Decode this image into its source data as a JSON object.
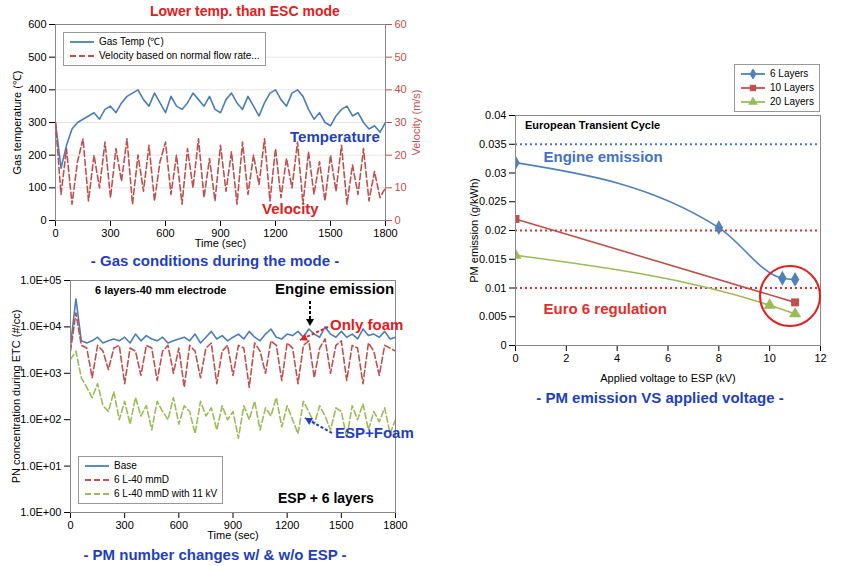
{
  "chart_data": [
    {
      "type": "line",
      "x_label": "Time (sec)",
      "y_label": "Gas temperature (℃)",
      "y2_label": "Velocity (m/s)",
      "caption": "- Gas conditions during the mode -",
      "annotations": [
        {
          "text": "Lower temp. than ESC mode",
          "color": "#e02020"
        },
        {
          "text": "Temperature",
          "color": "#1f3fbf"
        },
        {
          "text": "Velocity",
          "color": "#e02020"
        }
      ],
      "xlim": [
        0,
        1800
      ],
      "xticks": [
        0,
        300,
        600,
        900,
        1200,
        1500,
        1800
      ],
      "ylim": [
        0,
        600
      ],
      "yticks": [
        0,
        100,
        200,
        300,
        400,
        500,
        600
      ],
      "y2lim": [
        0,
        60
      ],
      "y2ticks": [
        0,
        10,
        20,
        30,
        40,
        50,
        60
      ],
      "grid": true,
      "legend": "upper left",
      "x": [
        0,
        30,
        60,
        90,
        120,
        150,
        180,
        210,
        240,
        270,
        300,
        330,
        360,
        390,
        420,
        450,
        480,
        510,
        540,
        570,
        600,
        630,
        660,
        690,
        720,
        750,
        780,
        810,
        840,
        870,
        900,
        930,
        960,
        990,
        1020,
        1050,
        1080,
        1110,
        1140,
        1170,
        1200,
        1230,
        1260,
        1290,
        1320,
        1350,
        1380,
        1410,
        1440,
        1470,
        1500,
        1530,
        1560,
        1590,
        1620,
        1650,
        1680,
        1710,
        1740,
        1770,
        1800
      ],
      "series": [
        {
          "name": "Gas Temp (℃)",
          "color": "#4a7ebb",
          "line_style": "solid",
          "values": [
            300,
            160,
            230,
            280,
            300,
            310,
            320,
            330,
            310,
            340,
            350,
            330,
            360,
            380,
            390,
            400,
            370,
            350,
            390,
            360,
            330,
            380,
            350,
            340,
            360,
            390,
            370,
            350,
            380,
            340,
            330,
            370,
            390,
            360,
            340,
            380,
            350,
            320,
            360,
            390,
            400,
            370,
            350,
            390,
            400,
            380,
            340,
            310,
            330,
            300,
            290,
            320,
            340,
            350,
            320,
            330,
            300,
            280,
            290,
            270,
            300
          ]
        },
        {
          "name": "Velocity based on normal flow rate...",
          "color": "#c0504d",
          "line_style": "dashed",
          "axis": "y2",
          "values": [
            30,
            8,
            22,
            5,
            18,
            25,
            6,
            20,
            10,
            24,
            7,
            22,
            12,
            25,
            5,
            20,
            9,
            23,
            6,
            18,
            24,
            8,
            20,
            5,
            22,
            10,
            25,
            7,
            19,
            6,
            23,
            9,
            21,
            5,
            24,
            8,
            20,
            11,
            25,
            6,
            22,
            7,
            19,
            10,
            24,
            5,
            21,
            8,
            18,
            6,
            20,
            9,
            23,
            5,
            17,
            8,
            22,
            6,
            15,
            7,
            10
          ]
        }
      ]
    },
    {
      "type": "line",
      "title": "6 layers-40 mm electrode",
      "x_label": "Time (sec)",
      "y_label": "PN concentration during ETC (#/cc)",
      "caption": "- PM number changes w/ & w/o ESP -",
      "annotations": [
        {
          "text": "Engine emission",
          "color": "#000000"
        },
        {
          "text": "Only foam",
          "color": "#e02020"
        },
        {
          "text": "ESP+Foam",
          "color": "#1f3fbf"
        },
        {
          "text": "ESP + 6 layers",
          "color": "#000000"
        }
      ],
      "log": "y",
      "legend": "lower left",
      "xlim": [
        0,
        1800
      ],
      "xticks": [
        0,
        300,
        600,
        900,
        1200,
        1500,
        1800
      ],
      "ylim": [
        1,
        100000
      ],
      "yticks": [
        {
          "value": 1,
          "label": "1.0E+00"
        },
        {
          "value": 10,
          "label": "1.0E+01"
        },
        {
          "value": 100,
          "label": "1.0E+02"
        },
        {
          "value": 1000,
          "label": "1.0E+03"
        },
        {
          "value": 10000,
          "label": "1.0E+04"
        },
        {
          "value": 100000,
          "label": "1.0E+05"
        }
      ],
      "x": [
        0,
        30,
        60,
        90,
        120,
        150,
        180,
        210,
        240,
        270,
        300,
        330,
        360,
        390,
        420,
        450,
        480,
        510,
        540,
        570,
        600,
        630,
        660,
        690,
        720,
        750,
        780,
        810,
        840,
        870,
        900,
        930,
        960,
        990,
        1020,
        1050,
        1080,
        1110,
        1140,
        1170,
        1200,
        1230,
        1260,
        1290,
        1320,
        1350,
        1380,
        1410,
        1440,
        1470,
        1500,
        1530,
        1560,
        1590,
        1620,
        1650,
        1680,
        1710,
        1740,
        1770,
        1800
      ],
      "series": [
        {
          "name": "Base",
          "color": "#4a7ebb",
          "line_style": "solid",
          "values": [
            4000,
            40000,
            5000,
            4500,
            5000,
            6000,
            4500,
            5000,
            5500,
            5000,
            6000,
            4500,
            7000,
            5000,
            6500,
            5500,
            5000,
            6000,
            4500,
            5000,
            5500,
            6000,
            5000,
            7000,
            4500,
            6000,
            8000,
            5500,
            6500,
            5000,
            6000,
            7000,
            5500,
            8000,
            6000,
            5000,
            7000,
            9000,
            6000,
            5500,
            7000,
            6500,
            8000,
            6000,
            9000,
            7000,
            6000,
            10000,
            7000,
            6000,
            8000,
            6000,
            7000,
            5500,
            9000,
            6500,
            7000,
            6000,
            8000,
            5500,
            6000
          ]
        },
        {
          "name": "6 L-40 mmD",
          "color": "#c0504d",
          "line_style": "dashed",
          "values": [
            3000,
            20000,
            4000,
            3500,
            800,
            4000,
            3000,
            1200,
            3500,
            4000,
            600,
            3500,
            3000,
            900,
            4000,
            3500,
            700,
            3000,
            4000,
            1000,
            3500,
            500,
            4000,
            3000,
            800,
            3500,
            4500,
            600,
            3000,
            4000,
            900,
            4000,
            3500,
            500,
            4500,
            3000,
            1000,
            5000,
            4000,
            700,
            4500,
            3500,
            600,
            4000,
            5000,
            800,
            3500,
            5500,
            1000,
            4000,
            5000,
            700,
            4000,
            3500,
            600,
            4500,
            3000,
            900,
            4000,
            3500,
            3000
          ]
        },
        {
          "name": "6 L-40 mmD with 11 kV",
          "color": "#9bbb59",
          "line_style": "dashed",
          "values": [
            2000,
            3000,
            800,
            500,
            300,
            600,
            200,
            150,
            400,
            100,
            250,
            80,
            300,
            120,
            200,
            60,
            250,
            150,
            100,
            300,
            80,
            200,
            150,
            50,
            250,
            120,
            180,
            60,
            200,
            100,
            150,
            40,
            200,
            100,
            250,
            60,
            180,
            120,
            300,
            70,
            200,
            100,
            50,
            250,
            150,
            80,
            200,
            120,
            60,
            180,
            150,
            40,
            200,
            100,
            220,
            60,
            150,
            90,
            180,
            50,
            100
          ]
        }
      ]
    },
    {
      "type": "line",
      "title": "European Transient Cycle",
      "x_label": "Applied voltage to ESP (kV)",
      "y_label": "PM emission (g/kWh)",
      "caption": "- PM emission VS applied voltage -",
      "legend": "upper right",
      "xlim": [
        0,
        12
      ],
      "xticks": [
        0,
        2,
        4,
        6,
        8,
        10,
        12
      ],
      "ylim": [
        0,
        0.04
      ],
      "yticks": [
        0,
        0.005,
        0.01,
        0.015,
        0.02,
        0.025,
        0.03,
        0.035,
        0.04
      ],
      "reference_lines": [
        {
          "value": 0.035,
          "color": "#4472c4",
          "label": "Engine emission"
        },
        {
          "value": 0.02,
          "color": "#e0302a"
        },
        {
          "value": 0.01,
          "color": "#e0302a",
          "label": "Euro 6 regulation"
        }
      ],
      "series": [
        {
          "name": "6 Layers",
          "color": "#4f81bd",
          "marker": "diamond",
          "x": [
            0,
            8,
            10.5,
            11
          ],
          "values": [
            0.0318,
            0.0205,
            0.0117,
            0.0115
          ]
        },
        {
          "name": "10 Layers",
          "color": "#c0504d",
          "marker": "square",
          "x": [
            0,
            11
          ],
          "values": [
            0.022,
            0.0075
          ]
        },
        {
          "name": "20 Layers",
          "color": "#9bbb59",
          "marker": "triangle",
          "x": [
            0,
            10,
            11
          ],
          "values": [
            0.0157,
            0.007,
            0.0055
          ]
        }
      ]
    }
  ]
}
